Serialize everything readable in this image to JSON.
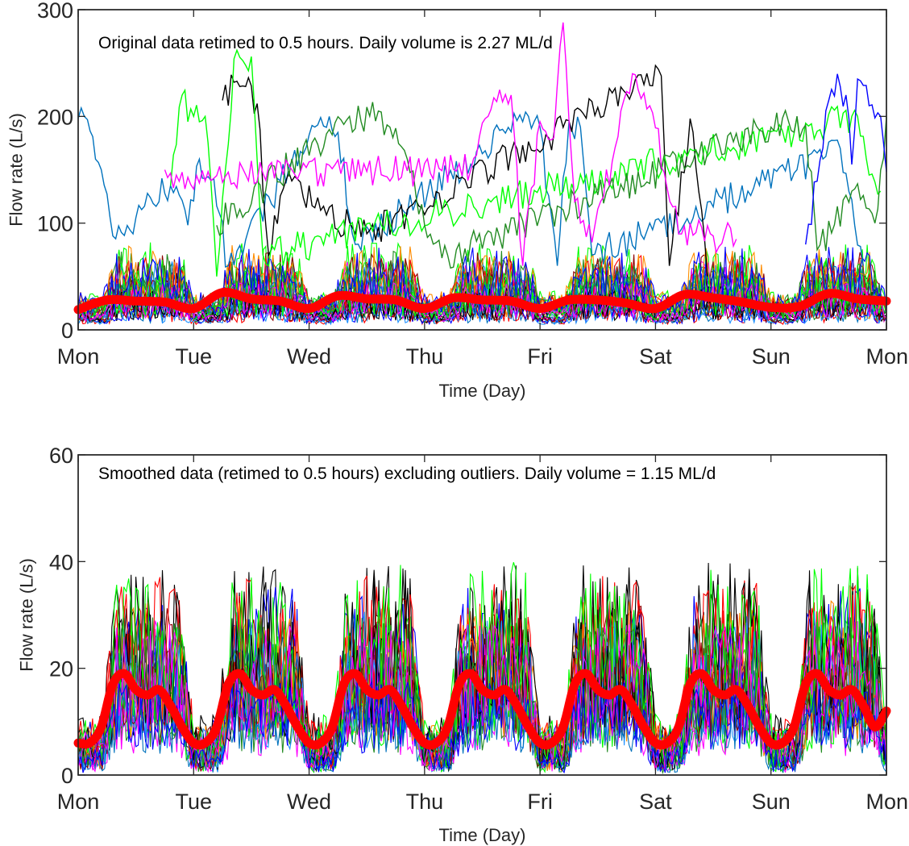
{
  "chart_data": [
    {
      "type": "line",
      "annotation": "Original data retimed to 0.5 hours. Daily volume is 2.27 ML/d",
      "xlabel": "Time (Day)",
      "ylabel": "Flow rate (L/s)",
      "x_range_days": [
        0,
        7
      ],
      "ylim": [
        0,
        300
      ],
      "yticks": [
        0,
        100,
        200,
        300
      ],
      "xtick_labels": [
        "Mon",
        "Tue",
        "Wed",
        "Thu",
        "Fri",
        "Sat",
        "Sun",
        "Mon"
      ],
      "grid": false,
      "series_colors": [
        "#0072BD",
        "#000000",
        "#00FF00",
        "#228B22",
        "#FF00FF",
        "#0000FF",
        "#FF0000",
        "#FF8C00",
        "#1E90FF",
        "#8B0000"
      ],
      "highlighted_series": {
        "color": "#FF0000",
        "x_days": [
          0,
          0.25,
          0.5,
          0.75,
          1,
          1.25,
          1.5,
          1.75,
          2,
          2.25,
          2.5,
          2.75,
          3,
          3.25,
          3.5,
          3.75,
          4,
          4.25,
          4.5,
          4.75,
          5,
          5.25,
          5.5,
          5.75,
          6,
          6.25,
          6.5,
          6.75,
          7
        ],
        "y": [
          19,
          28,
          27,
          26,
          20,
          35,
          29,
          27,
          20,
          32,
          29,
          28,
          20,
          30,
          28,
          27,
          20,
          28,
          28,
          25,
          20,
          33,
          30,
          26,
          21,
          22,
          34,
          29,
          27
        ]
      },
      "peak_traces": [
        {
          "color": "#0072BD",
          "points": [
            [
              0.0,
              198
            ],
            [
              0.08,
              197
            ],
            [
              0.15,
              160
            ],
            [
              0.2,
              150
            ],
            [
              0.3,
              88
            ],
            [
              0.5,
              105
            ],
            [
              0.8,
              135
            ],
            [
              0.95,
              98
            ],
            [
              1.05,
              160
            ],
            [
              1.15,
              140
            ],
            [
              1.3,
              60
            ],
            [
              2.05,
              190
            ],
            [
              2.25,
              185
            ],
            [
              2.4,
              80
            ],
            [
              3.9,
              200
            ],
            [
              4.0,
              190
            ],
            [
              4.15,
              60
            ],
            [
              4.25,
              195
            ],
            [
              4.35,
              190
            ],
            [
              4.45,
              70
            ],
            [
              5.8,
              130
            ],
            [
              6.6,
              170
            ],
            [
              6.8,
              60
            ]
          ]
        },
        {
          "color": "#000000",
          "points": [
            [
              1.25,
              215
            ],
            [
              1.35,
              232
            ],
            [
              1.45,
              228
            ],
            [
              1.55,
              212
            ],
            [
              1.65,
              70
            ],
            [
              1.8,
              140
            ],
            [
              2.1,
              112
            ],
            [
              2.5,
              90
            ],
            [
              5.05,
              238
            ],
            [
              5.12,
              60
            ],
            [
              5.3,
              198
            ],
            [
              5.45,
              50
            ]
          ]
        },
        {
          "color": "#00FF00",
          "points": [
            [
              0.8,
              135
            ],
            [
              0.9,
              220
            ],
            [
              1.0,
              200
            ],
            [
              1.1,
              200
            ],
            [
              1.2,
              50
            ],
            [
              1.35,
              254
            ],
            [
              1.5,
              256
            ],
            [
              1.6,
              70
            ],
            [
              6.75,
              200
            ],
            [
              6.85,
              145
            ],
            [
              6.95,
              130
            ]
          ]
        },
        {
          "color": "#228B22",
          "points": [
            [
              1.2,
              98
            ],
            [
              2.35,
              200
            ],
            [
              2.45,
              195
            ],
            [
              2.6,
              205
            ],
            [
              2.7,
              190
            ],
            [
              2.85,
              160
            ],
            [
              3.0,
              98
            ],
            [
              3.2,
              70
            ],
            [
              6.0,
              190
            ],
            [
              6.15,
              196
            ],
            [
              6.3,
              192
            ],
            [
              6.4,
              75
            ],
            [
              6.7,
              130
            ],
            [
              6.9,
              100
            ],
            [
              7.0,
              200
            ]
          ]
        },
        {
          "color": "#FF00FF",
          "points": [
            [
              0.75,
              150
            ],
            [
              0.85,
              145
            ],
            [
              3.4,
              150
            ],
            [
              3.55,
              200
            ],
            [
              3.65,
              225
            ],
            [
              3.75,
              220
            ],
            [
              3.85,
              60
            ],
            [
              4.0,
              195
            ],
            [
              4.12,
              180
            ],
            [
              4.2,
              288
            ],
            [
              4.3,
              120
            ],
            [
              4.45,
              82
            ],
            [
              4.8,
              240
            ],
            [
              4.95,
              210
            ],
            [
              5.2,
              90
            ],
            [
              5.5,
              88
            ],
            [
              5.7,
              85
            ]
          ]
        },
        {
          "color": "#0000FF",
          "points": [
            [
              6.3,
              80
            ],
            [
              6.5,
              215
            ],
            [
              6.6,
              228
            ],
            [
              6.65,
              220
            ],
            [
              6.7,
              155
            ],
            [
              6.75,
              235
            ],
            [
              6.85,
              210
            ],
            [
              6.95,
              200
            ],
            [
              7.0,
              148
            ]
          ]
        }
      ],
      "noise_band": {
        "day_mean": 38,
        "night_mean": 18,
        "spread": 45
      }
    },
    {
      "type": "line",
      "annotation": "Smoothed data (retimed to 0.5 hours) excluding outliers. Daily volume = 1.15 ML/d",
      "xlabel": "Time (Day)",
      "ylabel": "Flow rate (L/s)",
      "x_range_days": [
        0,
        7
      ],
      "ylim": [
        0,
        60
      ],
      "yticks": [
        0,
        20,
        40,
        60
      ],
      "xtick_labels": [
        "Mon",
        "Tue",
        "Wed",
        "Thu",
        "Fri",
        "Sat",
        "Sun",
        "Mon"
      ],
      "grid": false,
      "series_colors": [
        "#0072BD",
        "#000000",
        "#00FF00",
        "#228B22",
        "#FF00FF",
        "#0000FF",
        "#FF0000",
        "#FF8C00",
        "#1E90FF",
        "#8B0000"
      ],
      "highlighted_series": {
        "color": "#FF0000",
        "x_days": [
          0,
          0.1,
          0.2,
          0.3,
          0.4,
          0.5,
          0.6,
          0.7,
          0.8,
          0.9,
          1.0
        ],
        "y": [
          6,
          6,
          9,
          17,
          19,
          16,
          15,
          16,
          13,
          9,
          6
        ],
        "repeats_daily": true,
        "end_value": 12
      },
      "noise_band": {
        "day_mean": 18,
        "night_mean": 3,
        "spread": 22
      }
    }
  ]
}
